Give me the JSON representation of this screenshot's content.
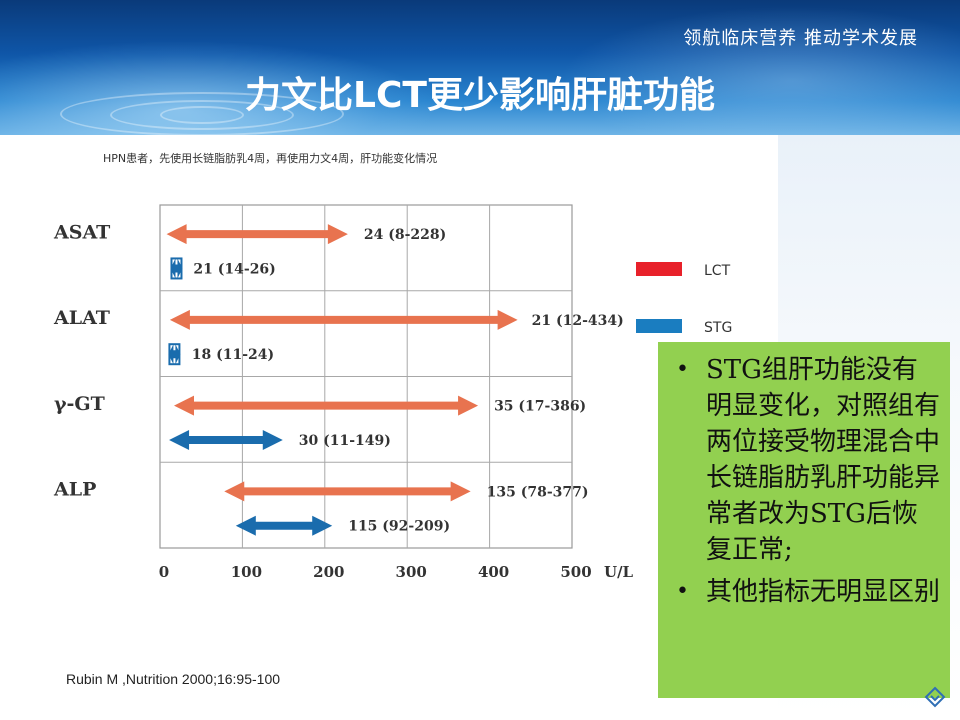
{
  "header": {
    "slogan": "领航临床营养 推动学术发展",
    "title": "力文比LCT更少影响肝脏功能"
  },
  "chart_data": {
    "type": "range-bar",
    "subtitle": "HPN患者，先使用长链脂肪乳4周，再使用力文4周，肝功能变化情况",
    "unit": "U/L",
    "xlim": [
      0,
      500
    ],
    "xticks": [
      0,
      100,
      200,
      300,
      400,
      500
    ],
    "categories": [
      "ASAT",
      "ALAT",
      "γ-GT",
      "ALP"
    ],
    "legend": [
      {
        "name": "LCT",
        "color": "#e8212a"
      },
      {
        "name": "STG",
        "color": "#1a7dc0"
      }
    ],
    "series": [
      {
        "name": "LCT",
        "color": "#e8734f",
        "values": [
          {
            "category": "ASAT",
            "min": 8,
            "max": 228,
            "median": 24,
            "label": "24 (8-228)"
          },
          {
            "category": "ALAT",
            "min": 12,
            "max": 434,
            "median": 21,
            "label": "21 (12-434)"
          },
          {
            "category": "γ-GT",
            "min": 17,
            "max": 386,
            "median": 35,
            "label": "35 (17-386)"
          },
          {
            "category": "ALP",
            "min": 78,
            "max": 377,
            "median": 135,
            "label": "135 (78-377)"
          }
        ]
      },
      {
        "name": "STG",
        "color": "#1a6cad",
        "values": [
          {
            "category": "ASAT",
            "min": 14,
            "max": 26,
            "median": 21,
            "label": "21 (14-26)"
          },
          {
            "category": "ALAT",
            "min": 11,
            "max": 24,
            "median": 18,
            "label": "18 (11-24)"
          },
          {
            "category": "γ-GT",
            "min": 11,
            "max": 149,
            "median": 30,
            "label": "30 (11-149)"
          },
          {
            "category": "ALP",
            "min": 92,
            "max": 209,
            "median": 115,
            "label": "115 (92-209)"
          }
        ]
      }
    ],
    "grid": true,
    "legend_position": "right"
  },
  "notes": {
    "bullet": "•",
    "items": [
      "STG组肝功能没有明显变化，对照组有两位接受物理混合中长链脂肪乳肝功能异常者改为STG后恢复正常;",
      "其他指标无明显区别"
    ]
  },
  "citation": "Rubin M ,Nutrition 2000;16:95-100",
  "colors": {
    "note_bg": "#92d050",
    "header_blue": "#0f56a8"
  },
  "icons": {
    "nav": "diamond-nav-icon"
  }
}
